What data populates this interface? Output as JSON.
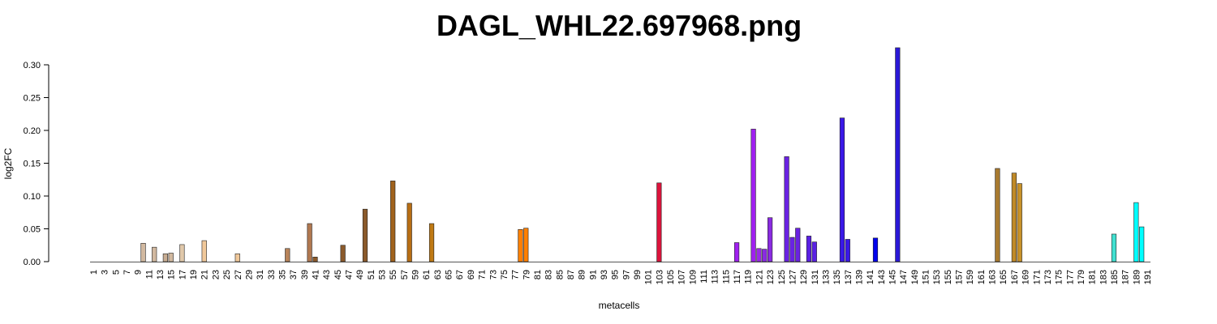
{
  "chart_data": {
    "type": "bar",
    "title": "DAGL_WHL22.697968.png",
    "xlabel": "metacells",
    "ylabel": "log2FC",
    "categories": [
      "1",
      null,
      "3",
      null,
      "5",
      null,
      "7",
      null,
      "9",
      null,
      "11",
      null,
      "13",
      null,
      "15",
      null,
      "17",
      null,
      "19",
      null,
      "21",
      null,
      "23",
      null,
      "25",
      null,
      "27",
      null,
      "29",
      null,
      "31",
      null,
      "33",
      null,
      "35",
      null,
      "37",
      null,
      "39",
      null,
      "41",
      null,
      "43",
      null,
      "45",
      null,
      "47",
      null,
      "49",
      null,
      "51",
      null,
      "53",
      null,
      "55",
      null,
      "57",
      null,
      "59",
      null,
      "61",
      null,
      "63",
      null,
      "65",
      null,
      "67",
      null,
      "69",
      null,
      "71",
      null,
      "73",
      null,
      "75",
      null,
      "77",
      null,
      "79",
      null,
      "81",
      null,
      "83",
      null,
      "85",
      null,
      "87",
      null,
      "89",
      null,
      "91",
      null,
      "93",
      null,
      "95",
      null,
      "97",
      null,
      "99",
      null,
      "101",
      null,
      "103",
      null,
      "105",
      null,
      "107",
      null,
      "109",
      null,
      "111",
      null,
      "113",
      null,
      "115",
      null,
      "117",
      null,
      "119",
      null,
      "121",
      null,
      "123",
      null,
      "125",
      null,
      "127",
      null,
      "129",
      null,
      "131",
      null,
      "133",
      null,
      "135",
      null,
      "137",
      null,
      "139",
      null,
      "141",
      null,
      "143",
      null,
      "145",
      null,
      "147",
      null,
      "149",
      null,
      "151",
      null,
      "153",
      null,
      "155",
      null,
      "157",
      null,
      "159",
      null,
      "161",
      null,
      "163",
      null,
      "165",
      null,
      "167",
      null,
      "169",
      null,
      "171",
      null,
      "173",
      null,
      "175",
      null,
      "177",
      null,
      "179",
      null,
      "181",
      null,
      "183",
      null,
      "185",
      null,
      "187",
      null,
      "189",
      null,
      "191"
    ],
    "values": [
      0,
      0,
      0,
      0,
      0,
      0,
      0,
      0,
      0,
      0.028,
      0,
      0.022,
      0,
      0.012,
      0.013,
      0,
      0.026,
      0,
      0,
      0,
      0.032,
      0,
      0,
      0,
      0,
      0,
      0.012,
      0,
      0,
      0,
      0,
      0,
      0,
      0,
      0,
      0.02,
      0,
      0,
      0,
      0.058,
      0.007,
      0,
      0,
      0,
      0,
      0.025,
      0,
      0,
      0,
      0.08,
      0,
      0,
      0,
      0,
      0.123,
      0,
      0,
      0.089,
      0,
      0,
      0,
      0.058,
      0,
      0,
      0,
      0,
      0,
      0,
      0,
      0,
      0,
      0,
      0,
      0,
      0,
      0,
      0,
      0.049,
      0.051,
      0,
      0,
      0,
      0,
      0,
      0,
      0,
      0,
      0,
      0,
      0,
      0,
      0,
      0,
      0,
      0,
      0,
      0,
      0,
      0,
      0,
      0,
      0,
      0.12,
      0,
      0,
      0,
      0,
      0,
      0,
      0,
      0,
      0,
      0,
      0,
      0,
      0,
      0.029,
      0,
      0,
      0.202,
      0.02,
      0.019,
      0.067,
      0,
      0,
      0.16,
      0.037,
      0.051,
      0,
      0.039,
      0.03,
      0,
      0,
      0,
      0,
      0.219,
      0.034,
      0,
      0,
      0,
      0,
      0.036,
      0,
      0,
      0,
      0.326,
      0,
      0,
      0,
      0,
      0,
      0,
      0,
      0,
      0,
      0,
      0,
      0,
      0,
      0,
      0,
      0,
      0,
      0.142,
      0,
      0,
      0.135,
      0.119,
      0,
      0,
      0,
      0,
      0,
      0,
      0,
      0,
      0,
      0,
      0,
      0,
      0,
      0,
      0,
      0,
      0.042,
      0,
      0,
      0,
      0.09,
      0.053,
      0
    ],
    "colors": [
      "#d2b9a0",
      "#d2b9a0",
      "#d2b9a0",
      "#d2b9a0",
      "#d2b9a0",
      "#d2b9a0",
      "#d2b9a0",
      "#d2b9a0",
      "#d2b9a0",
      "#d2b9a0",
      "#d2b9a0",
      "#d2b9a0",
      "#d2b9a0",
      "#c8ad92",
      "#d2b9a0",
      "#d2b9a0",
      "#e0c8aa",
      "#d2b9a0",
      "#d2b9a0",
      "#d2b9a0",
      "#f0c89a",
      "#f0c89a",
      "#f0c89a",
      "#f0c89a",
      "#f0c89a",
      "#f0c89a",
      "#f0c89a",
      "#f0c89a",
      "#f0c89a",
      "#f0c89a",
      "#b8845a",
      "#b8845a",
      "#b8845a",
      "#b8845a",
      "#b8845a",
      "#b8845a",
      "#b8845a",
      "#b8845a",
      "#b8845a",
      "#b07850",
      "#8b5a2b",
      "#8b5a2b",
      "#8b5a2b",
      "#8b5a2b",
      "#8b5a2b",
      "#8b5a2b",
      "#8b5a2b",
      "#8b5a2b",
      "#8b5a2b",
      "#8b5a2b",
      "#a0621c",
      "#a0621c",
      "#a0621c",
      "#a0621c",
      "#a0621c",
      "#a0621c",
      "#a0621c",
      "#b86e14",
      "#a0621c",
      "#a0621c",
      "#c07a14",
      "#c07a14",
      "#c07a14",
      "#c07a14",
      "#c07a14",
      "#c07a14",
      "#c07a14",
      "#c07a14",
      "#c07a14",
      "#c07a14",
      "#ff7f00",
      "#ff7f00",
      "#ff7f00",
      "#ff7f00",
      "#ff7f00",
      "#ff7f00",
      "#ff7f00",
      "#ff7f00",
      "#ff7f00",
      "#ff7f00",
      "#ff7f00",
      "#ff7f00",
      "#ff7f00",
      "#ff7f00",
      "#ff7f00",
      "#ff7f00",
      "#ff7f00",
      "#ff7f00",
      "#ff7f00",
      "#ff7f00",
      "#dc143c",
      "#dc143c",
      "#dc143c",
      "#dc143c",
      "#dc143c",
      "#dc143c",
      "#dc143c",
      "#dc143c",
      "#dc143c",
      "#dc143c",
      "#dc143c",
      "#dc143c",
      "#dc143c",
      "#dc143c",
      "#dc143c",
      "#dc143c",
      "#dc143c",
      "#dc143c",
      "#dc143c",
      "#dc143c",
      "#a020f0",
      "#a020f0",
      "#a020f0",
      "#a020f0",
      "#a020f0",
      "#a020f0",
      "#a020f0",
      "#a020f0",
      "#a020f0",
      "#a020f0",
      "#9b2ae8",
      "#8a2be2",
      "#8a2be2",
      "#7b2be2",
      "#7b2be2",
      "#6a22e2",
      "#6a22e2",
      "#6a22e2",
      "#6a22e2",
      "#5a20e4",
      "#5a20e4",
      "#3a18e8",
      "#3a18e8",
      "#3a18e8",
      "#3a18e8",
      "#3a18e8",
      "#3a18e8",
      "#3a18e8",
      "#3a18e8",
      "#3a18e8",
      "#1c1ce8",
      "#0000ee",
      "#1c1ce8",
      "#1c1ce8",
      "#1c1ce8",
      "#2a18d8",
      "#1c1ce8",
      "#1c1ce8",
      "#1c1ce8",
      "#1c1ce8",
      "#b8862b",
      "#b8862b",
      "#b8862b",
      "#b8862b",
      "#b8862b",
      "#b8862b",
      "#b8862b",
      "#b8862b",
      "#b8862b",
      "#b8862b",
      "#b8862b",
      "#b8862b",
      "#b8862b",
      "#a87a30",
      "#b8862b",
      "#b8862b",
      "#c08a28",
      "#c8922a",
      "#b8862b",
      "#b8862b",
      "#40e0d0",
      "#40e0d0",
      "#40e0d0",
      "#40e0d0",
      "#40e0d0",
      "#40e0d0",
      "#40e0d0",
      "#40e0d0",
      "#40e0d0",
      "#40e0d0",
      "#40e0d0",
      "#40e0d0",
      "#40e0d0",
      "#40e0d0",
      "#40e0d0",
      "#40e0d0",
      "#40e0d0",
      "#40e0d0",
      "#00ffff",
      "#00ffff",
      "#00ffff"
    ],
    "ylim": [
      0,
      0.33
    ],
    "yticks": [
      {
        "value": 0,
        "label": "0.00"
      },
      {
        "value": 0.05,
        "label": "0.05"
      },
      {
        "value": 0.1,
        "label": "0.10"
      },
      {
        "value": 0.15,
        "label": "0.15"
      },
      {
        "value": 0.2,
        "label": "0.20"
      },
      {
        "value": 0.25,
        "label": "0.25"
      },
      {
        "value": 0.3,
        "label": "0.30"
      }
    ]
  }
}
